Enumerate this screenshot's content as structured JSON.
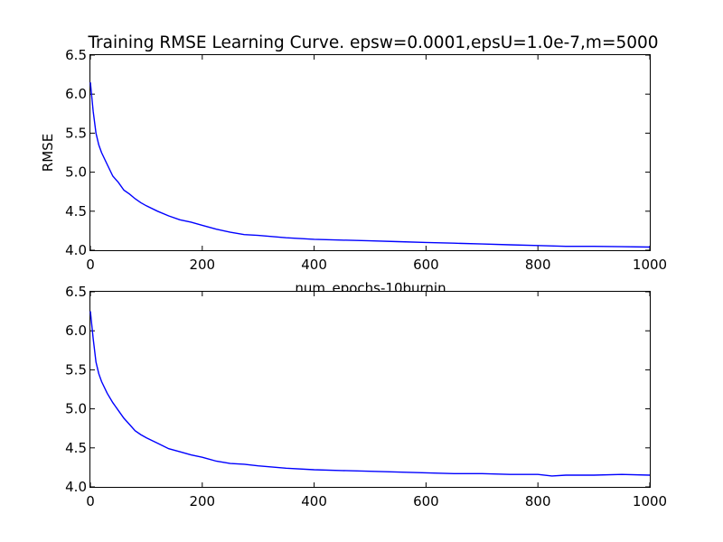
{
  "chart_data": [
    {
      "type": "line",
      "title": "Training RMSE Learning Curve. epsw=0.0001,epsU=1.0e-7,m=5000",
      "xlabel": "num_epochs-10burnin",
      "ylabel": "RMSE",
      "xlim": [
        0,
        1000
      ],
      "ylim": [
        4.0,
        6.5
      ],
      "xticks": [
        "0",
        "200",
        "400",
        "600",
        "800",
        "1000"
      ],
      "yticks": [
        "4.0",
        "4.5",
        "5.0",
        "5.5",
        "6.0",
        "6.5"
      ],
      "grid": false,
      "line_color": "#0000ff",
      "series": [
        {
          "x": [
            0,
            5,
            10,
            15,
            20,
            30,
            40,
            50,
            60,
            70,
            80,
            90,
            100,
            120,
            140,
            160,
            180,
            200,
            225,
            250,
            275,
            300,
            350,
            400,
            450,
            500,
            550,
            600,
            650,
            700,
            750,
            800,
            850,
            900,
            950,
            1000
          ],
          "values": [
            6.15,
            5.78,
            5.5,
            5.35,
            5.25,
            5.1,
            4.95,
            4.87,
            4.77,
            4.72,
            4.66,
            4.61,
            4.57,
            4.5,
            4.44,
            4.39,
            4.36,
            4.32,
            4.27,
            4.23,
            4.2,
            4.19,
            4.16,
            4.14,
            4.13,
            4.12,
            4.11,
            4.1,
            4.09,
            4.08,
            4.07,
            4.06,
            4.05,
            4.05,
            4.045,
            4.04
          ]
        }
      ]
    },
    {
      "type": "line",
      "title": "",
      "xlabel": "",
      "ylabel": "",
      "xlim": [
        0,
        1000
      ],
      "ylim": [
        4.0,
        6.5
      ],
      "xticks": [
        "0",
        "200",
        "400",
        "600",
        "800",
        "1000"
      ],
      "yticks": [
        "4.0",
        "4.5",
        "5.0",
        "5.5",
        "6.0",
        "6.5"
      ],
      "grid": false,
      "line_color": "#0000ff",
      "series": [
        {
          "x": [
            0,
            5,
            10,
            15,
            20,
            30,
            40,
            50,
            60,
            70,
            80,
            90,
            100,
            120,
            140,
            160,
            180,
            200,
            225,
            250,
            275,
            300,
            350,
            400,
            450,
            500,
            550,
            600,
            650,
            700,
            750,
            800,
            825,
            850,
            900,
            950,
            1000
          ],
          "values": [
            6.25,
            5.9,
            5.6,
            5.45,
            5.35,
            5.2,
            5.08,
            4.98,
            4.88,
            4.8,
            4.72,
            4.67,
            4.63,
            4.56,
            4.49,
            4.45,
            4.41,
            4.38,
            4.33,
            4.3,
            4.29,
            4.27,
            4.24,
            4.22,
            4.21,
            4.2,
            4.19,
            4.18,
            4.17,
            4.17,
            4.16,
            4.16,
            4.14,
            4.15,
            4.15,
            4.16,
            4.15
          ]
        }
      ]
    }
  ]
}
